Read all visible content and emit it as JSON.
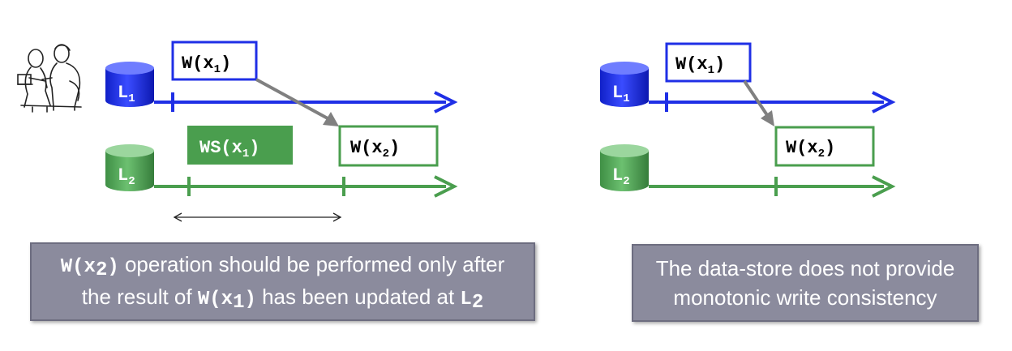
{
  "colors": {
    "blue": "#1f2fe6",
    "green": "#4a9e4e",
    "caption_bg": "#8b8b9d",
    "arrow_gray": "#808080"
  },
  "icons": {
    "user": "person-at-computer-icon"
  },
  "left": {
    "l1_label": "L",
    "l1_sub": "1",
    "l2_label": "L",
    "l2_sub": "2",
    "w1_op": "W(x",
    "w1_sub": "1",
    "w1_close": ")",
    "ws_op": "WS(x",
    "ws_sub": "1",
    "ws_close": ")",
    "w2_op": "W(x",
    "w2_sub": "2",
    "w2_close": ")",
    "caption": {
      "code1": "W(x",
      "code1_sub": "2",
      "code1_close": ")",
      "text1": " operation should be performed only after",
      "text2": "the result of ",
      "code2": "W(x",
      "code2_sub": "1",
      "code2_close": ")",
      "text3": " has been updated at ",
      "code3": "L",
      "code3_sub": "2"
    }
  },
  "right": {
    "l1_label": "L",
    "l1_sub": "1",
    "l2_label": "L",
    "l2_sub": "2",
    "w1_op": "W(x",
    "w1_sub": "1",
    "w1_close": ")",
    "w2_op": "W(x",
    "w2_sub": "2",
    "w2_close": ")",
    "caption_line1": "The data-store does not provide",
    "caption_line2": "monotonic write consistency"
  }
}
